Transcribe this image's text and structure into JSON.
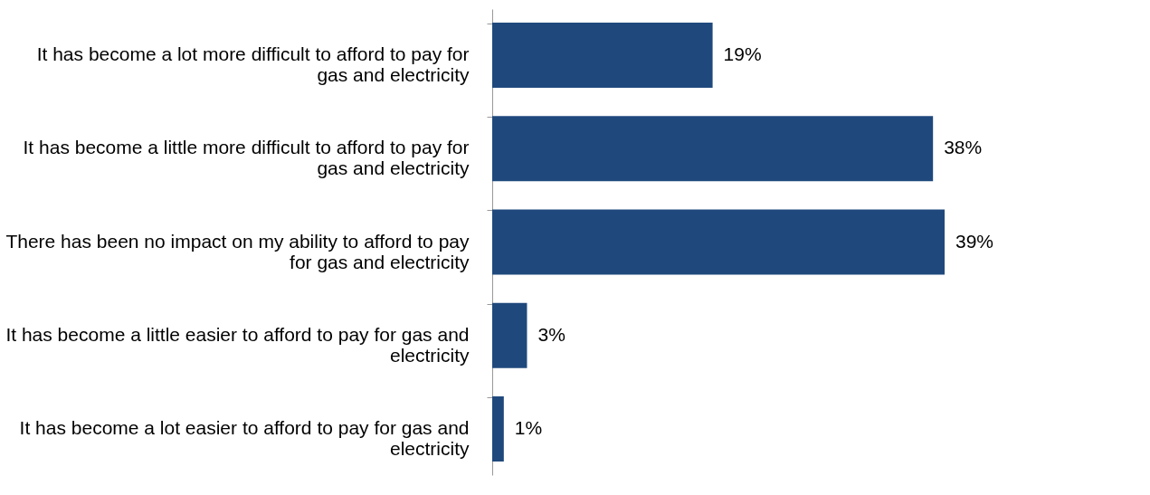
{
  "chart_data": {
    "type": "bar",
    "orientation": "horizontal",
    "categories": [
      "It has become a lot more difficult to afford to pay for gas and electricity",
      "It has become a little more difficult to afford to pay for gas and electricity",
      "There has been no impact on my ability to afford to pay for gas and electricity",
      "It has become a little easier to afford to pay for gas and electricity",
      "It has become a lot easier to afford to pay for gas and electricity"
    ],
    "values": [
      19,
      38,
      39,
      3,
      1
    ],
    "value_labels": [
      "19%",
      "38%",
      "39%",
      "3%",
      "1%"
    ],
    "color": "#1f497d",
    "grid": false,
    "tick_labels": "y"
  }
}
